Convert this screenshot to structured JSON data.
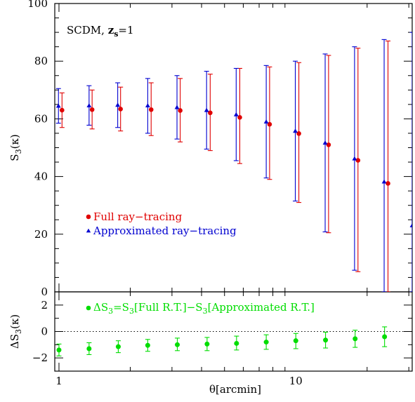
{
  "chart_data": [
    {
      "type": "scatter",
      "panel": "top",
      "annotation": {
        "text": "SCDM,",
        "sub_label": "z",
        "sub": "s",
        "eq": "=1"
      },
      "ylabel": {
        "main": "S",
        "sub": "3",
        "arg": "(κ)"
      },
      "ylim": [
        0,
        100
      ],
      "yticks": [
        "0",
        "20",
        "40",
        "60",
        "80",
        "100"
      ],
      "xscale": "log",
      "xlim": [
        0.96,
        31
      ],
      "legend": {
        "placement": "lower-left",
        "entries": [
          {
            "text": "Full ray−tracing",
            "color": "#e00000",
            "marker": "circle"
          },
          {
            "text": "Approximated ray−tracing",
            "color": "#0000d0",
            "marker": "triangle"
          }
        ]
      },
      "series": [
        {
          "name": "Full ray−tracing",
          "color": "#e00000",
          "marker": "circle",
          "x": [
            1.03,
            1.38,
            1.82,
            2.45,
            3.25,
            4.35,
            5.8,
            7.75,
            10.3,
            13.75,
            18.3,
            24.5
          ],
          "y": [
            63.0,
            63.2,
            63.4,
            63.2,
            62.9,
            62.1,
            60.5,
            58.1,
            54.9,
            51.0,
            45.6,
            37.6
          ],
          "yerr_low": [
            57.0,
            56.5,
            55.8,
            54.2,
            52.0,
            49.0,
            44.5,
            39.0,
            31.0,
            20.5,
            7.0,
            0
          ],
          "yerr_high": [
            69.0,
            70.0,
            71.0,
            72.5,
            74.0,
            75.5,
            77.5,
            78.0,
            79.5,
            82.0,
            84.5,
            87.0
          ]
        },
        {
          "name": "Approximated ray−tracing",
          "color": "#0000d0",
          "marker": "triangle",
          "x": [
            0.995,
            1.34,
            1.77,
            2.37,
            3.15,
            4.2,
            5.6,
            7.5,
            9.95,
            13.3,
            17.7,
            23.6,
            31.0
          ],
          "y": [
            64.5,
            64.6,
            64.8,
            64.6,
            64.0,
            63.0,
            61.5,
            59.0,
            55.8,
            51.7,
            46.2,
            38.2,
            23.0
          ],
          "yerr_low": [
            58.5,
            57.8,
            57.0,
            55.0,
            53.0,
            49.5,
            45.5,
            39.5,
            31.5,
            20.8,
            7.5,
            0,
            0
          ],
          "yerr_high": [
            70.5,
            71.5,
            72.5,
            74.0,
            75.0,
            76.5,
            77.5,
            78.5,
            80.0,
            82.5,
            85.0,
            87.5,
            90.0
          ]
        }
      ]
    },
    {
      "type": "scatter",
      "panel": "bottom",
      "ylabel": {
        "prefix": "ΔS",
        "sub": "3",
        "arg": "(κ)"
      },
      "ylim": [
        -3.0,
        3.0
      ],
      "yticks": [
        "−2",
        "0",
        "2"
      ],
      "xscale": "log",
      "xlim": [
        0.96,
        31
      ],
      "xticks": [
        "1",
        "10"
      ],
      "xlabel": "θ[arcmin]",
      "reference_line": {
        "y": 0,
        "style": "dotted"
      },
      "legend": {
        "placement": "top-left",
        "entries": [
          {
            "parts": [
              "ΔS",
              "3",
              "=S",
              "3",
              "[Full R.T.]−S",
              "3",
              "[Approximated R.T.]"
            ],
            "color": "#00dd00",
            "marker": "circle"
          }
        ]
      },
      "series": [
        {
          "name": "ΔS3",
          "color": "#00dd00",
          "marker": "circle",
          "x": [
            1.0,
            1.34,
            1.78,
            2.37,
            3.16,
            4.22,
            5.62,
            7.5,
            10.0,
            13.35,
            17.8,
            23.7
          ],
          "y": [
            -1.4,
            -1.3,
            -1.15,
            -1.05,
            -1.0,
            -0.95,
            -0.9,
            -0.8,
            -0.7,
            -0.65,
            -0.55,
            -0.4
          ],
          "yerr_low": [
            -1.85,
            -1.75,
            -1.6,
            -1.5,
            -1.45,
            -1.45,
            -1.4,
            -1.35,
            -1.3,
            -1.25,
            -1.2,
            -1.15
          ],
          "yerr_high": [
            -0.95,
            -0.85,
            -0.7,
            -0.6,
            -0.5,
            -0.45,
            -0.35,
            -0.25,
            -0.15,
            -0.05,
            0.1,
            0.35
          ]
        }
      ]
    }
  ]
}
